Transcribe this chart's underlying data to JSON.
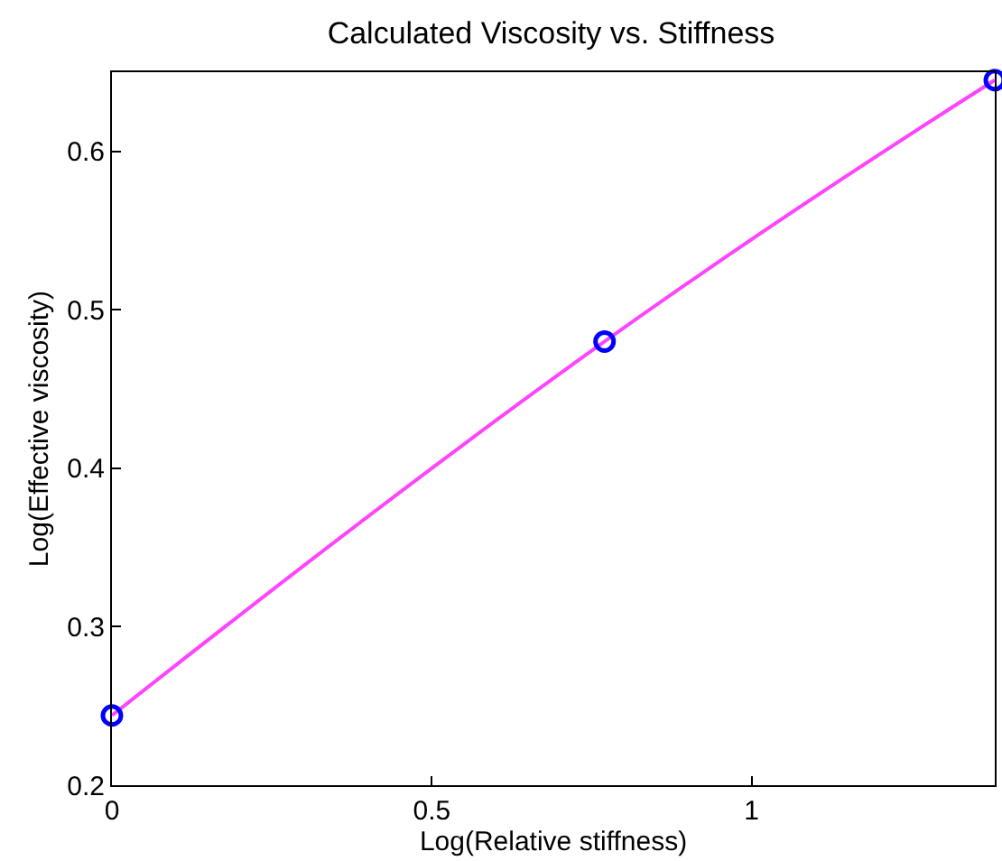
{
  "chart_data": {
    "type": "scatter",
    "title": "Calculated Viscosity vs. Stiffness",
    "xlabel": "Log(Relative stiffness)",
    "ylabel": "Log(Effective viscosity)",
    "series": [
      {
        "type": "line",
        "color": "#ff44ff",
        "x": [
          0,
          0.77,
          1.38
        ],
        "values": [
          0.244,
          0.48,
          0.645
        ],
        "marker": "none"
      },
      {
        "color": "#0000ff",
        "x": [
          0,
          0.77,
          1.38
        ],
        "values": [
          0.244,
          0.48,
          0.645
        ],
        "marker": "circle"
      }
    ],
    "xlim": [
      0,
      1.38
    ],
    "xticks": [
      0,
      0.5,
      1
    ],
    "ylim": [
      0.2,
      0.65
    ],
    "yticks": [
      0.2,
      0.3,
      0.4,
      0.5,
      0.6
    ]
  }
}
